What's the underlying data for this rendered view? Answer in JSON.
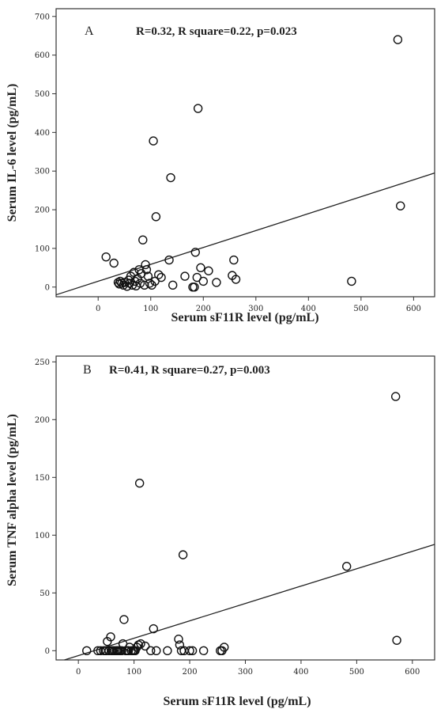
{
  "chart_data": [
    {
      "type": "scatter",
      "panel_label": "A",
      "stats": "R=0.32, R square=0.22, p=0.023",
      "xlabel": "Serum sF11R level (pg/mL)",
      "ylabel": "Serum IL-6 level (pg/mL)",
      "xlim": [
        -80,
        640
      ],
      "ylim": [
        -25,
        720
      ],
      "xticks": [
        "0",
        "100",
        "200",
        "300",
        "400",
        "500",
        "600"
      ],
      "yticks": [
        "0",
        "100",
        "200",
        "300",
        "400",
        "500",
        "600",
        "700"
      ],
      "xtick_values": [
        0,
        100,
        200,
        300,
        400,
        500,
        600
      ],
      "ytick_values": [
        0,
        100,
        200,
        300,
        400,
        500,
        600,
        700
      ],
      "fit_line": {
        "x": [
          -80,
          640
        ],
        "y": [
          -20,
          295
        ]
      },
      "points": [
        [
          15,
          78
        ],
        [
          30,
          62
        ],
        [
          38,
          12
        ],
        [
          40,
          8
        ],
        [
          42,
          15
        ],
        [
          45,
          10
        ],
        [
          48,
          5
        ],
        [
          50,
          12
        ],
        [
          55,
          2
        ],
        [
          58,
          18
        ],
        [
          60,
          10
        ],
        [
          62,
          28
        ],
        [
          65,
          5
        ],
        [
          68,
          38
        ],
        [
          70,
          15
        ],
        [
          72,
          3
        ],
        [
          75,
          22
        ],
        [
          78,
          45
        ],
        [
          80,
          10
        ],
        [
          82,
          35
        ],
        [
          85,
          122
        ],
        [
          88,
          5
        ],
        [
          90,
          58
        ],
        [
          92,
          45
        ],
        [
          95,
          28
        ],
        [
          98,
          10
        ],
        [
          102,
          5
        ],
        [
          105,
          378
        ],
        [
          108,
          15
        ],
        [
          110,
          182
        ],
        [
          115,
          32
        ],
        [
          120,
          25
        ],
        [
          135,
          70
        ],
        [
          138,
          283
        ],
        [
          142,
          5
        ],
        [
          165,
          28
        ],
        [
          180,
          0
        ],
        [
          183,
          0
        ],
        [
          185,
          90
        ],
        [
          188,
          25
        ],
        [
          190,
          462
        ],
        [
          195,
          50
        ],
        [
          200,
          15
        ],
        [
          210,
          42
        ],
        [
          225,
          12
        ],
        [
          255,
          30
        ],
        [
          258,
          70
        ],
        [
          262,
          20
        ],
        [
          482,
          15
        ],
        [
          570,
          640
        ],
        [
          575,
          210
        ]
      ]
    },
    {
      "type": "scatter",
      "panel_label": "B",
      "stats": "R=0.41, R square=0.27, p=0.003",
      "xlabel": "Serum sF11R level (pg/mL)",
      "ylabel": "Serum TNF alpha level (pg/mL)",
      "xlim": [
        -40,
        640
      ],
      "ylim": [
        -8,
        255
      ],
      "xticks": [
        "0",
        "100",
        "200",
        "300",
        "400",
        "500",
        "600"
      ],
      "yticks": [
        "0",
        "50",
        "100",
        "150",
        "200",
        "250"
      ],
      "xtick_values": [
        0,
        100,
        200,
        300,
        400,
        500,
        600
      ],
      "ytick_values": [
        0,
        50,
        100,
        150,
        200,
        250
      ],
      "fit_line": {
        "x": [
          -25,
          640
        ],
        "y": [
          -8,
          92
        ]
      },
      "points": [
        [
          15,
          0
        ],
        [
          35,
          0
        ],
        [
          40,
          0
        ],
        [
          45,
          0
        ],
        [
          48,
          0
        ],
        [
          50,
          0
        ],
        [
          52,
          8
        ],
        [
          55,
          0
        ],
        [
          58,
          12
        ],
        [
          60,
          0
        ],
        [
          62,
          0
        ],
        [
          65,
          0
        ],
        [
          68,
          0
        ],
        [
          70,
          0
        ],
        [
          72,
          0
        ],
        [
          75,
          0
        ],
        [
          78,
          0
        ],
        [
          80,
          6
        ],
        [
          82,
          27
        ],
        [
          85,
          0
        ],
        [
          88,
          0
        ],
        [
          90,
          0
        ],
        [
          92,
          3
        ],
        [
          95,
          0
        ],
        [
          98,
          0
        ],
        [
          100,
          0
        ],
        [
          102,
          0
        ],
        [
          105,
          3
        ],
        [
          108,
          5
        ],
        [
          110,
          145
        ],
        [
          112,
          6
        ],
        [
          120,
          4
        ],
        [
          130,
          0
        ],
        [
          135,
          19
        ],
        [
          140,
          0
        ],
        [
          160,
          0
        ],
        [
          180,
          10
        ],
        [
          182,
          5
        ],
        [
          185,
          0
        ],
        [
          188,
          83
        ],
        [
          190,
          0
        ],
        [
          200,
          0
        ],
        [
          205,
          0
        ],
        [
          225,
          0
        ],
        [
          255,
          0
        ],
        [
          258,
          0
        ],
        [
          262,
          3
        ],
        [
          482,
          73
        ],
        [
          570,
          220
        ],
        [
          572,
          9
        ]
      ]
    }
  ]
}
